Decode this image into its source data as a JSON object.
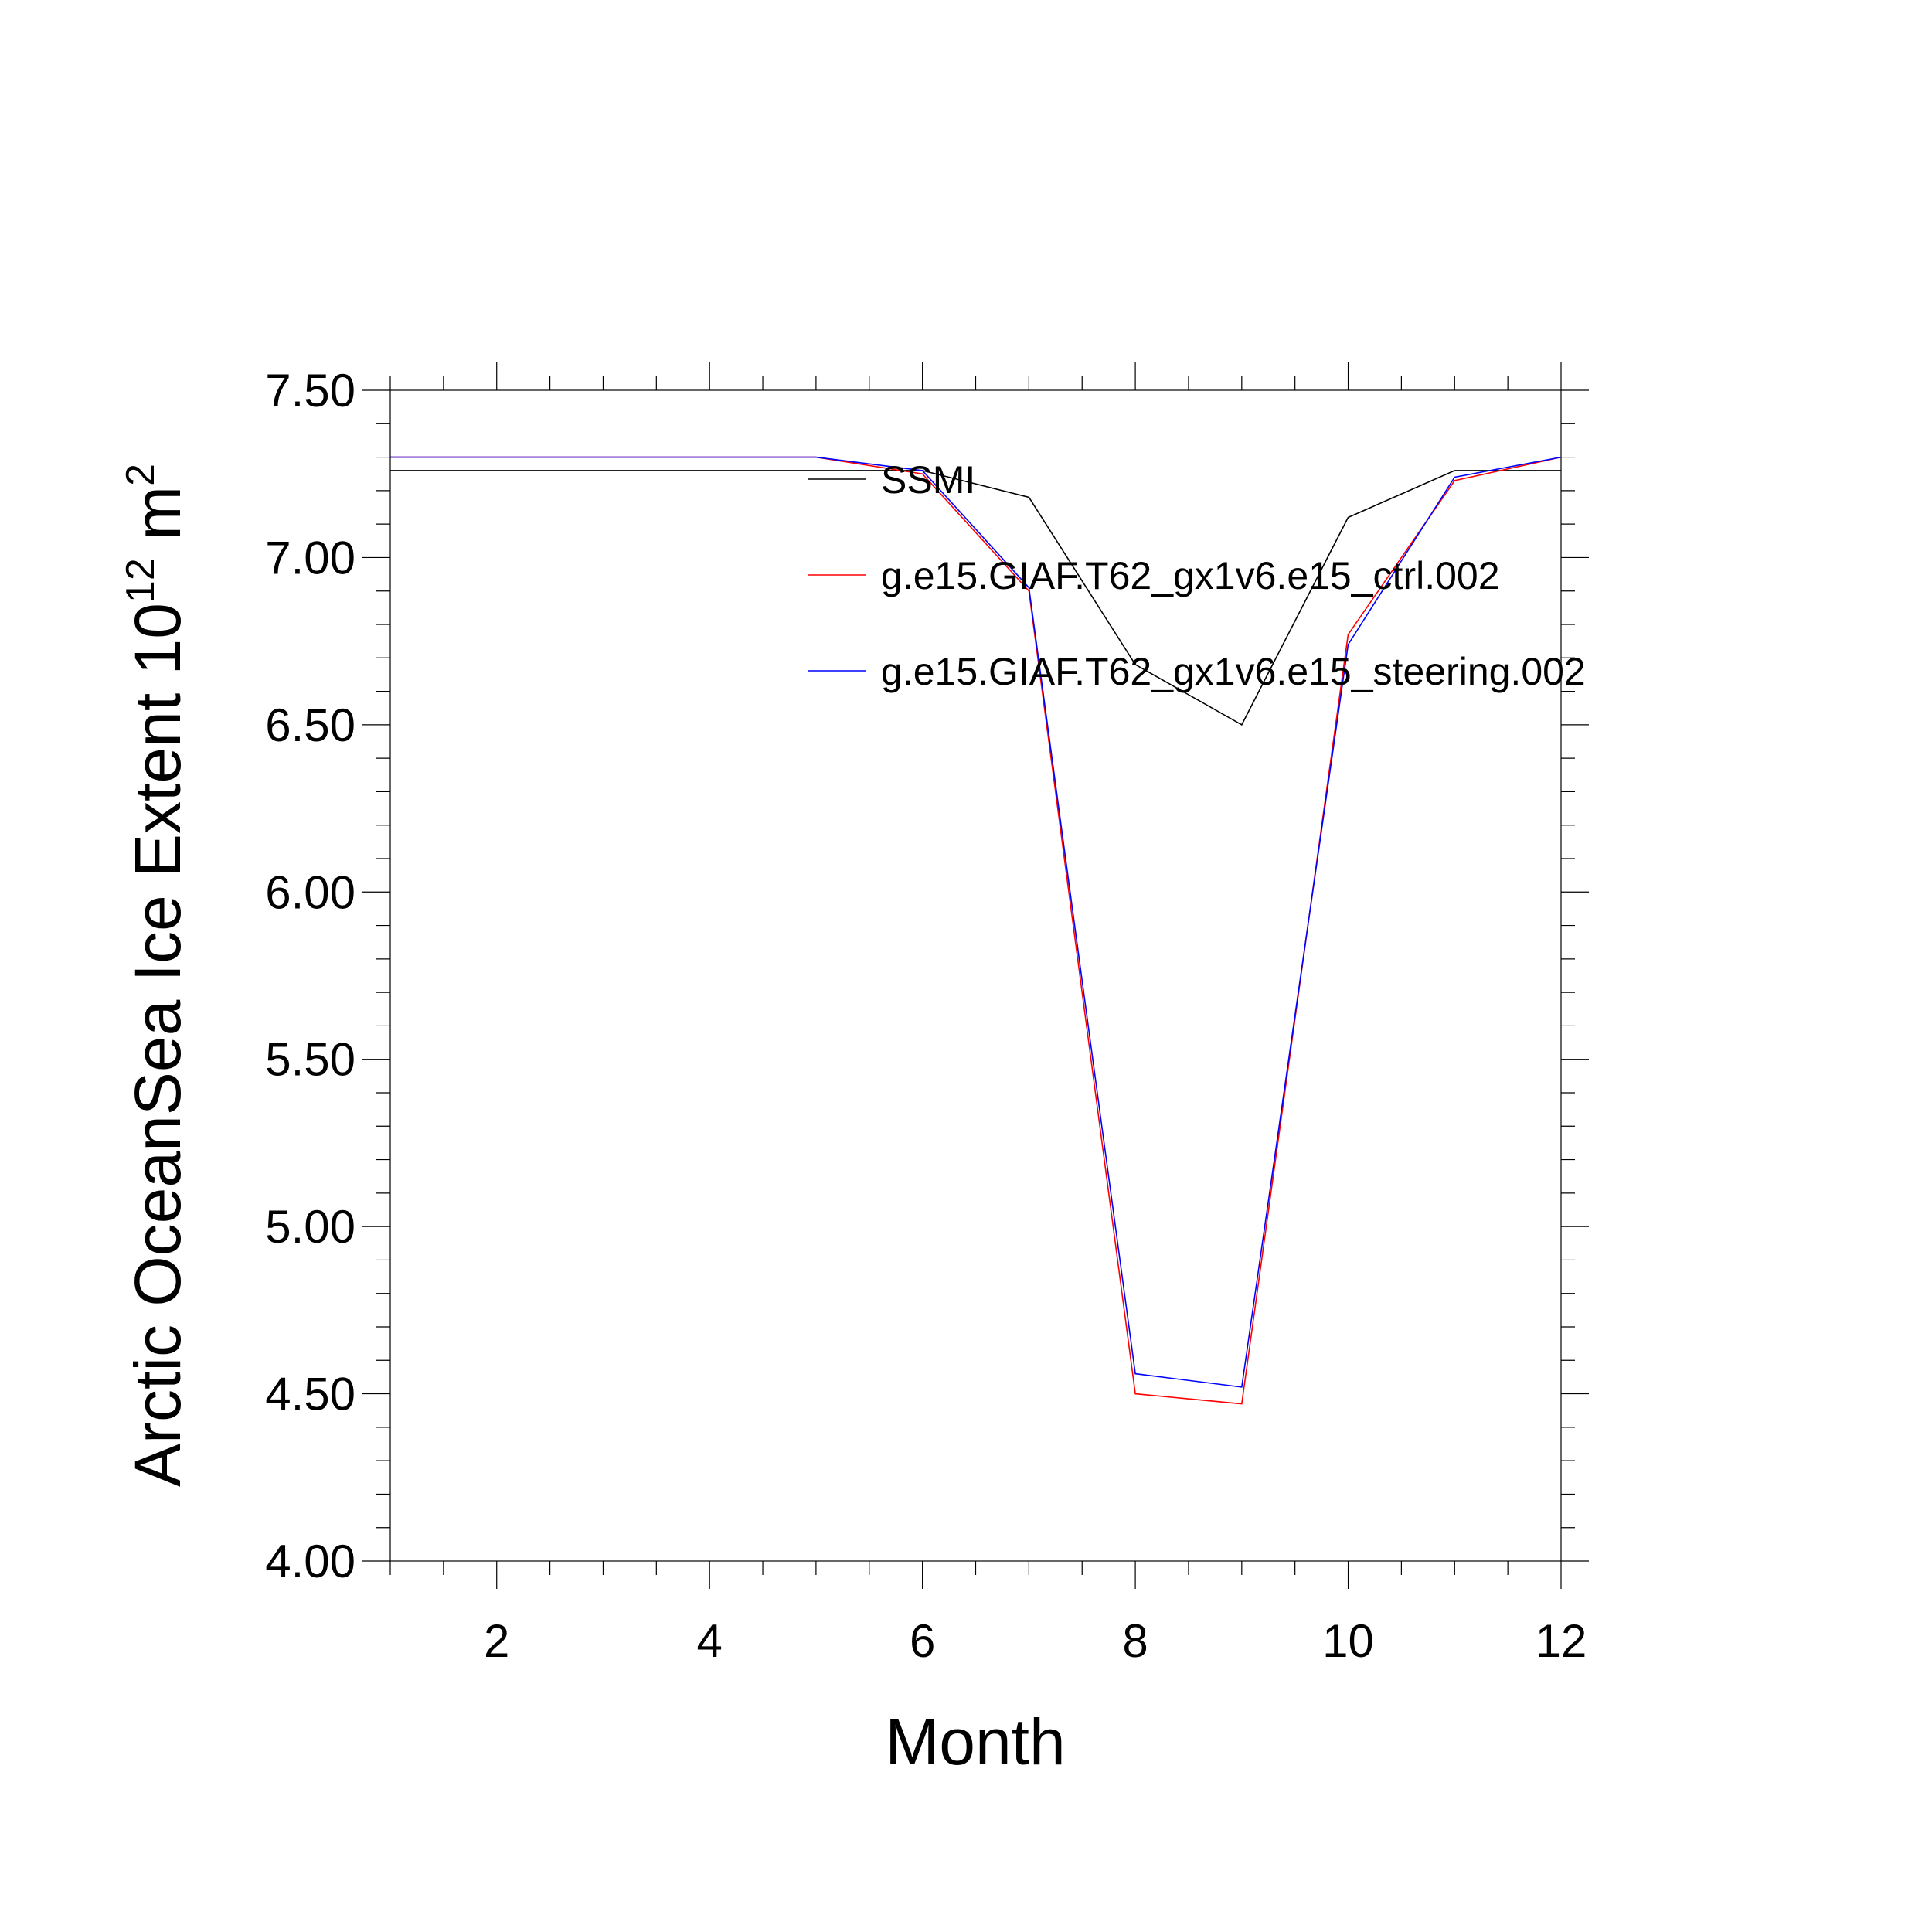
{
  "chart_data": {
    "type": "line",
    "title": "",
    "xlabel": "Month",
    "ylabel_main": "Arctic OceanSea Ice Extent 10",
    "ylabel_sup1": "12",
    "ylabel_unit": " m",
    "ylabel_sup2": "2",
    "xlim": [
      1,
      12
    ],
    "ylim": [
      4.0,
      7.5
    ],
    "x_ticks": [
      "2",
      "4",
      "6",
      "8",
      "10",
      "12"
    ],
    "y_ticks": [
      "4.00",
      "4.50",
      "5.00",
      "5.50",
      "6.00",
      "6.50",
      "7.00",
      "7.50"
    ],
    "grid": false,
    "legend_position": "top-right inside",
    "x": [
      1,
      2,
      3,
      4,
      5,
      6,
      7,
      8,
      9,
      10,
      11,
      12
    ],
    "series": [
      {
        "name": "SSMI",
        "color": "#000000",
        "values": [
          7.26,
          7.26,
          7.26,
          7.26,
          7.26,
          7.26,
          7.18,
          6.68,
          6.5,
          7.12,
          7.26,
          7.26
        ]
      },
      {
        "name": "g.e15.GIAF.T62_gx1v6.e15_ctrl.002",
        "color": "#ff0000",
        "values": [
          7.3,
          7.3,
          7.3,
          7.3,
          7.3,
          7.25,
          6.9,
          4.5,
          4.47,
          6.77,
          7.23,
          7.3
        ]
      },
      {
        "name": "g.e15.GIAF.T62_gx1v6.e15_steering.002",
        "color": "#0000ff",
        "values": [
          7.3,
          7.3,
          7.3,
          7.3,
          7.3,
          7.26,
          6.91,
          4.56,
          4.52,
          6.74,
          7.24,
          7.3
        ]
      }
    ]
  }
}
